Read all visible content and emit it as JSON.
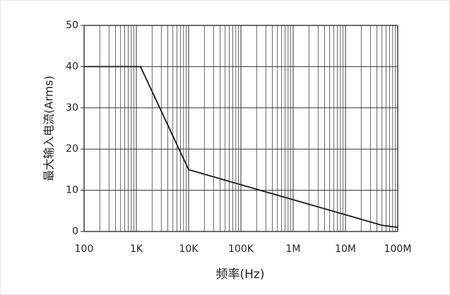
{
  "chart_data": {
    "type": "line",
    "x_label": "频率(Hz)",
    "y_label": "最大输入电流(Arms)",
    "x": [
      100,
      1200,
      10000,
      50000000,
      100000000
    ],
    "values": [
      40,
      40,
      15,
      1.5,
      1
    ],
    "color": "#1a1a1a",
    "x_log": true,
    "xlim": [
      100,
      100000000
    ],
    "xticks": [
      100,
      {
        "value": 1000,
        "label": "1K"
      },
      {
        "value": 10000,
        "label": "10K"
      },
      {
        "value": 100000,
        "label": "100K"
      },
      {
        "value": 1000000,
        "label": "1M"
      },
      {
        "value": 10000000,
        "label": "10M"
      },
      {
        "value": 100000000,
        "label": "100M"
      }
    ],
    "ylim": [
      0,
      50
    ],
    "yticks": [
      0,
      10,
      20,
      30,
      40,
      50
    ],
    "grid": true
  }
}
